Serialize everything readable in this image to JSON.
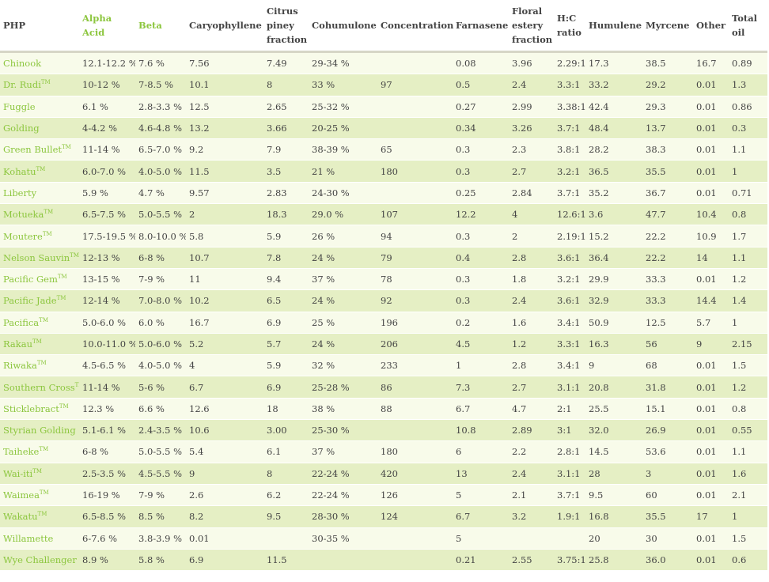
{
  "columns": [
    {
      "label": "PHP",
      "highlight": false
    },
    {
      "label": "Alpha Acid",
      "highlight": true
    },
    {
      "label": "Beta",
      "highlight": true
    },
    {
      "label": "Caryophyllene",
      "highlight": false
    },
    {
      "label": "Citrus piney fraction",
      "highlight": false
    },
    {
      "label": "Cohumulone",
      "highlight": false
    },
    {
      "label": "Concentration",
      "highlight": false
    },
    {
      "label": "Farnasene",
      "highlight": false
    },
    {
      "label": "Floral estery fraction",
      "highlight": false
    },
    {
      "label": "H:C ratio",
      "highlight": false
    },
    {
      "label": "Humulene",
      "highlight": false
    },
    {
      "label": "Myrcene",
      "highlight": false
    },
    {
      "label": "Other",
      "highlight": false
    },
    {
      "label": "Total oil",
      "highlight": false
    }
  ],
  "rows": [
    {
      "name": "Chinook",
      "tm": "",
      "cells": [
        "12.1-12.2 %",
        "7.6 %",
        "7.56",
        "7.49",
        "29-34 %",
        "",
        "0.08",
        "3.96",
        "2.29:1",
        "17.3",
        "38.5",
        "16.7",
        "0.89"
      ]
    },
    {
      "name": "Dr. Rudi",
      "tm": "TM",
      "cells": [
        "10-12 %",
        "7-8.5 %",
        "10.1",
        "8",
        "33 %",
        "97",
        "0.5",
        "2.4",
        "3.3:1",
        "33.2",
        "29.2",
        "0.01",
        "1.3"
      ]
    },
    {
      "name": "Fuggle",
      "tm": "",
      "cells": [
        "6.1 %",
        "2.8-3.3 %",
        "12.5",
        "2.65",
        "25-32 %",
        "",
        "0.27",
        "2.99",
        "3.38:1",
        "42.4",
        "29.3",
        "0.01",
        "0.86"
      ]
    },
    {
      "name": "Golding",
      "tm": "",
      "cells": [
        "4-4.2 %",
        "4.6-4.8 %",
        "13.2",
        "3.66",
        "20-25 %",
        "",
        "0.34",
        "3.26",
        "3.7:1",
        "48.4",
        "13.7",
        "0.01",
        "0.3"
      ]
    },
    {
      "name": "Green Bullet",
      "tm": "TM",
      "cells": [
        "11-14 %",
        "6.5-7.0 %",
        "9.2",
        "7.9",
        "38-39 %",
        "65",
        "0.3",
        "2.3",
        "3.8:1",
        "28.2",
        "38.3",
        "0.01",
        "1.1"
      ]
    },
    {
      "name": "Kohatu",
      "tm": "TM",
      "cells": [
        "6.0-7.0 %",
        "4.0-5.0 %",
        "11.5",
        "3.5",
        "21 %",
        "180",
        "0.3",
        "2.7",
        "3.2:1",
        "36.5",
        "35.5",
        "0.01",
        "1"
      ]
    },
    {
      "name": "Liberty",
      "tm": "",
      "cells": [
        "5.9 %",
        "4.7 %",
        "9.57",
        "2.83",
        "24-30 %",
        "",
        "0.25",
        "2.84",
        "3.7:1",
        "35.2",
        "36.7",
        "0.01",
        "0.71"
      ]
    },
    {
      "name": "Motueka",
      "tm": "TM",
      "cells": [
        "6.5-7.5 %",
        "5.0-5.5 %",
        "2",
        "18.3",
        "29.0 %",
        "107",
        "12.2",
        "4",
        "12.6:1",
        "3.6",
        "47.7",
        "10.4",
        "0.8"
      ]
    },
    {
      "name": "Moutere",
      "tm": "TM",
      "cells": [
        "17.5-19.5 %",
        "8.0-10.0 %",
        "5.8",
        "5.9",
        "26 %",
        "94",
        "0.3",
        "2",
        "2.19:1",
        "15.2",
        "22.2",
        "10.9",
        "1.7"
      ]
    },
    {
      "name": "Nelson Sauvin",
      "tm": "TM",
      "cells": [
        "12-13 %",
        "6-8 %",
        "10.7",
        "7.8",
        "24 %",
        "79",
        "0.4",
        "2.8",
        "3.6:1",
        "36.4",
        "22.2",
        "14",
        "1.1"
      ]
    },
    {
      "name": "Pacific Gem",
      "tm": "TM",
      "cells": [
        "13-15 %",
        "7-9 %",
        "11",
        "9.4",
        "37 %",
        "78",
        "0.3",
        "1.8",
        "3.2:1",
        "29.9",
        "33.3",
        "0.01",
        "1.2"
      ]
    },
    {
      "name": "Pacific Jade",
      "tm": "TM",
      "cells": [
        "12-14 %",
        "7.0-8.0 %",
        "10.2",
        "6.5",
        "24 %",
        "92",
        "0.3",
        "2.4",
        "3.6:1",
        "32.9",
        "33.3",
        "14.4",
        "1.4"
      ]
    },
    {
      "name": "Pacifica",
      "tm": "TM",
      "cells": [
        "5.0-6.0 %",
        "6.0 %",
        "16.7",
        "6.9",
        "25 %",
        "196",
        "0.2",
        "1.6",
        "3.4:1",
        "50.9",
        "12.5",
        "5.7",
        "1"
      ]
    },
    {
      "name": "Rakau",
      "tm": "TM",
      "cells": [
        "10.0-11.0 %",
        "5.0-6.0 %",
        "5.2",
        "5.7",
        "24 %",
        "206",
        "4.5",
        "1.2",
        "3.3:1",
        "16.3",
        "56",
        "9",
        "2.15"
      ]
    },
    {
      "name": "Riwaka",
      "tm": "TM",
      "cells": [
        "4.5-6.5 %",
        "4.0-5.0 %",
        "4",
        "5.9",
        "32 %",
        "233",
        "1",
        "2.8",
        "3.4:1",
        "9",
        "68",
        "0.01",
        "1.5"
      ]
    },
    {
      "name": "Southern Cross",
      "tm": "TM",
      "cells": [
        "11-14 %",
        "5-6 %",
        "6.7",
        "6.9",
        "25-28 %",
        "86",
        "7.3",
        "2.7",
        "3.1:1",
        "20.8",
        "31.8",
        "0.01",
        "1.2"
      ]
    },
    {
      "name": "Sticklebract",
      "tm": "TM",
      "cells": [
        "12.3 %",
        "6.6 %",
        "12.6",
        "18",
        "38 %",
        "88",
        "6.7",
        "4.7",
        "2:1",
        "25.5",
        "15.1",
        "0.01",
        "0.8"
      ]
    },
    {
      "name": "Styrian Golding",
      "tm": "",
      "cells": [
        "5.1-6.1 %",
        "2.4-3.5 %",
        "10.6",
        "3.00",
        "25-30 %",
        "",
        "10.8",
        "2.89",
        "3:1",
        "32.0",
        "26.9",
        "0.01",
        "0.55"
      ]
    },
    {
      "name": "Taiheke",
      "tm": "TM",
      "cells": [
        "6-8 %",
        "5.0-5.5 %",
        "5.4",
        "6.1",
        "37 %",
        "180",
        "6",
        "2.2",
        "2.8:1",
        "14.5",
        "53.6",
        "0.01",
        "1.1"
      ]
    },
    {
      "name": "Wai-iti",
      "tm": "TM",
      "cells": [
        "2.5-3.5 %",
        "4.5-5.5 %",
        "9",
        "8",
        "22-24 %",
        "420",
        "13",
        "2.4",
        "3.1:1",
        "28",
        "3",
        "0.01",
        "1.6"
      ]
    },
    {
      "name": "Waimea",
      "tm": "TM",
      "cells": [
        "16-19 %",
        "7-9 %",
        "2.6",
        "6.2",
        "22-24 %",
        "126",
        "5",
        "2.1",
        "3.7:1",
        "9.5",
        "60",
        "0.01",
        "2.1"
      ]
    },
    {
      "name": "Wakatu",
      "tm": "TM",
      "cells": [
        "6.5-8.5 %",
        "8.5 %",
        "8.2",
        "9.5",
        "28-30 %",
        "124",
        "6.7",
        "3.2",
        "1.9:1",
        "16.8",
        "35.5",
        "17",
        "1"
      ]
    },
    {
      "name": "Willamette",
      "tm": "",
      "cells": [
        "6-7.6 %",
        "3.8-3.9 %",
        "0.01",
        "",
        "30-35 %",
        "",
        "5",
        "",
        "",
        "20",
        "30",
        "0.01",
        "1.5"
      ]
    },
    {
      "name": "Wye Challenger",
      "tm": "",
      "cells": [
        "8.9 %",
        "5.8 %",
        "6.9",
        "11.5",
        "",
        "",
        "0.21",
        "2.55",
        "3.75:1",
        "25.8",
        "36.0",
        "0.01",
        "0.6"
      ]
    }
  ],
  "colors": {
    "accent": "#8cc63e",
    "row_odd": "#f8fbea",
    "row_even": "#e5efc4",
    "header_rule": "#d6d6c6",
    "text": "#444444"
  }
}
